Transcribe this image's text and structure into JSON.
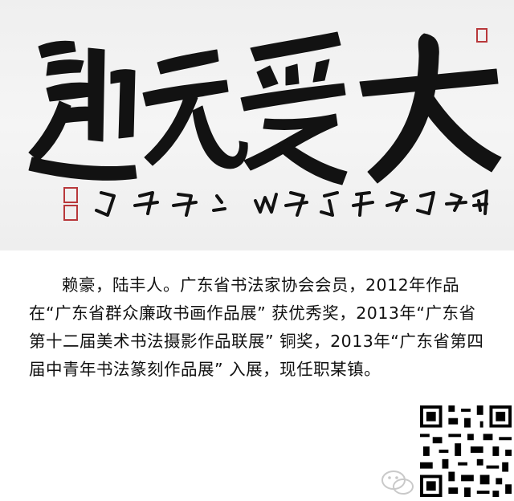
{
  "artwork": {
    "type": "chinese-calligraphy-scroll",
    "main_characters": "大爱无疆",
    "inscription": "甲午夏月书于陆丰山之赖豪",
    "seals": [
      "artist-seal-red"
    ],
    "ink_color": "#111111",
    "seal_color": "#b8383b"
  },
  "caption": {
    "text": "赖豪，陆丰人。广东省书法家协会会员，2012年作品在“广东省群众廉政书画作品展” 获优秀奖，2013年“广东省第十二届美术书法摄影作品联展” 铜奖，2013年“广东省第四届中青年书法篆刻作品展” 入展，现任职某镇。"
  },
  "qr_code": {
    "icon": "qr-code-icon"
  },
  "watermark": {
    "icon": "wechat-watermark-icon"
  }
}
